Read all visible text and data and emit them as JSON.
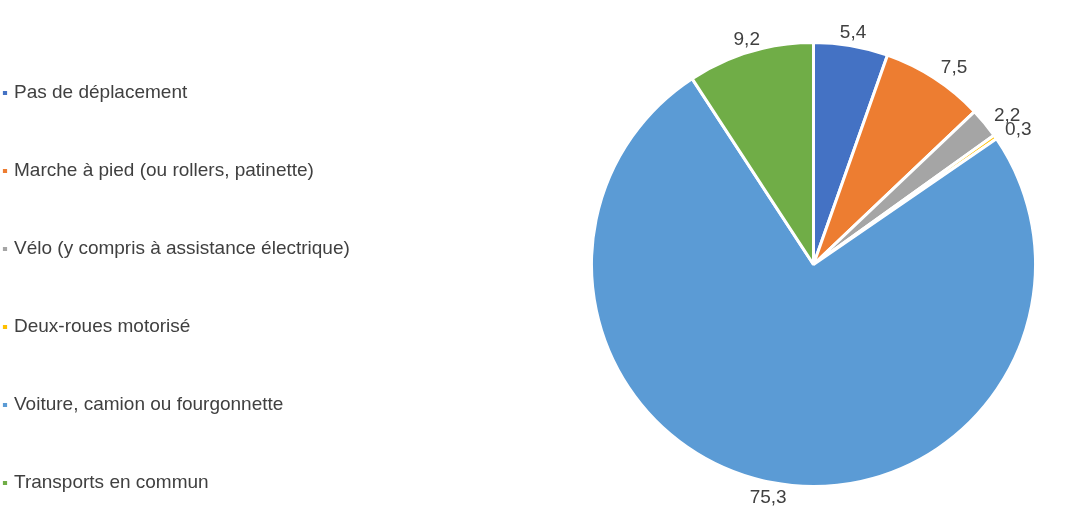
{
  "chart_data": {
    "type": "pie",
    "categories": [
      "Pas de déplacement",
      "Marche à pied (ou rollers, patinette)",
      "Vélo (y compris à assistance électrique)",
      "Deux-roues motorisé",
      "Voiture, camion ou fourgonnette",
      "Transports en commun"
    ],
    "values": [
      5.4,
      7.5,
      2.2,
      0.3,
      75.3,
      9.2
    ],
    "colors": [
      "#4472c4",
      "#ed7d31",
      "#a5a5a5",
      "#ffc000",
      "#5b9bd5",
      "#70ad47"
    ],
    "value_labels": [
      "5,4",
      "7,5",
      "2,2",
      "0,3",
      "75,3",
      "9,2"
    ],
    "legend": "left"
  }
}
